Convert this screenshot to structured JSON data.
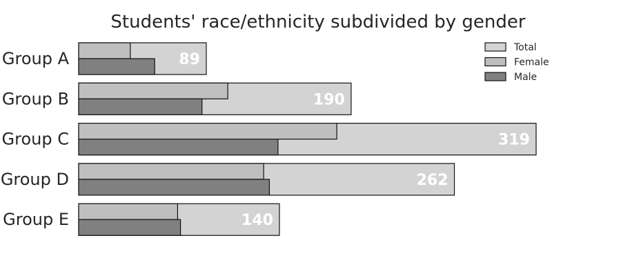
{
  "chart_data": {
    "type": "bar",
    "orientation": "horizontal",
    "stacked": false,
    "title": "Students' race/ethnicity subdivided by gender",
    "categories": [
      "Group A",
      "Group B",
      "Group C",
      "Group D",
      "Group E"
    ],
    "series": [
      {
        "name": "Total",
        "values": [
          89,
          190,
          319,
          262,
          140
        ],
        "color": "#d3d3d3"
      },
      {
        "name": "Female",
        "values": [
          36,
          104,
          180,
          129,
          69
        ],
        "color": "#bfbfbf"
      },
      {
        "name": "Male",
        "values": [
          53,
          86,
          139,
          133,
          71
        ],
        "color": "#808080"
      }
    ],
    "total_labels": [
      "89",
      "190",
      "319",
      "262",
      "140"
    ],
    "xlim": [
      0,
      319
    ],
    "grid": false,
    "legend_position": "top-right",
    "legend": [
      "Total",
      "Female",
      "Male"
    ]
  }
}
